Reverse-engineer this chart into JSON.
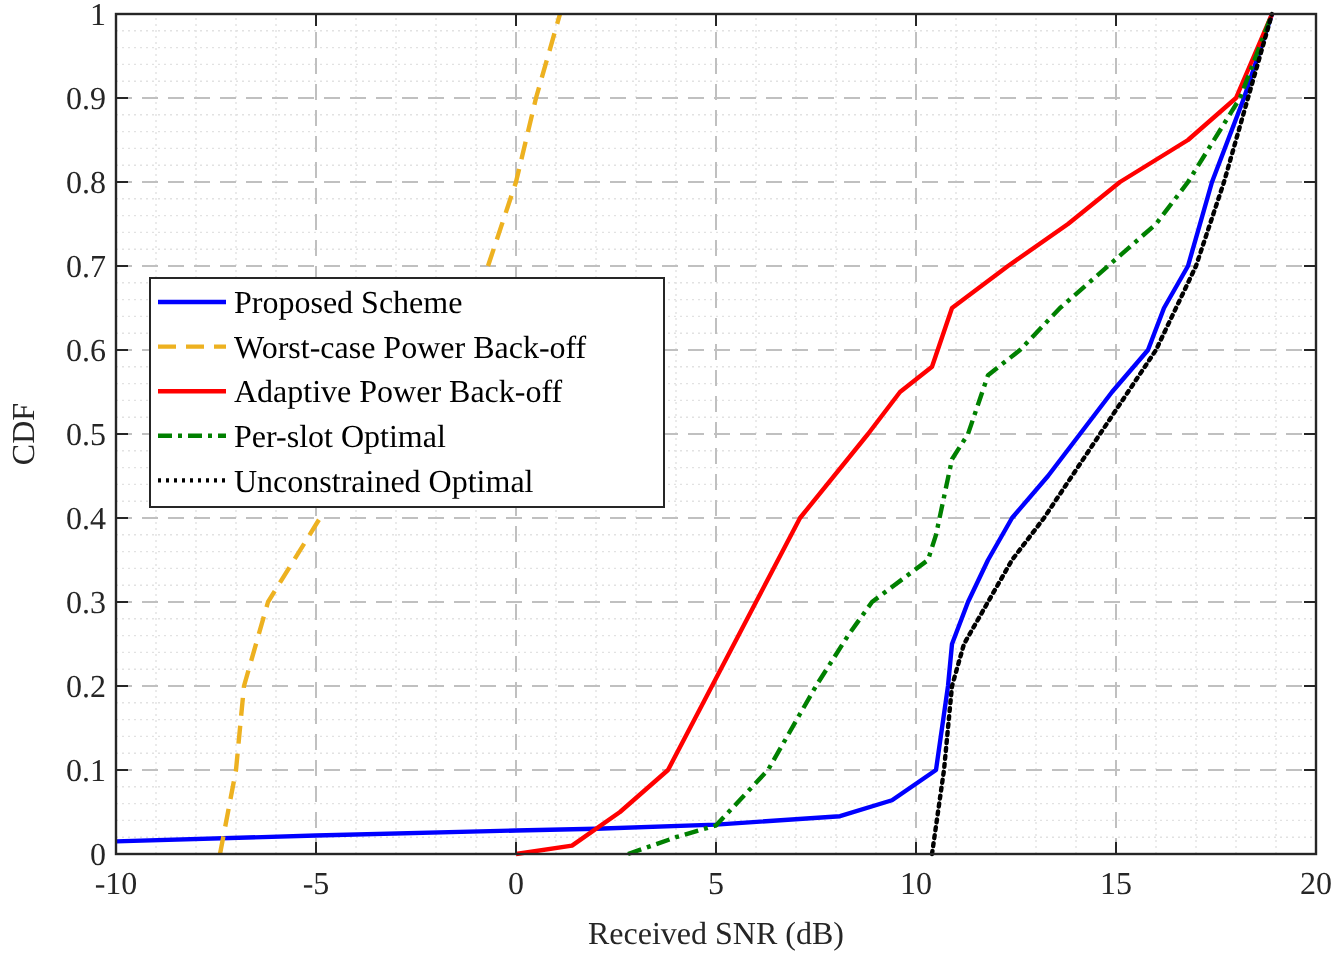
{
  "chart_data": {
    "type": "line",
    "xlabel": "Received SNR (dB)",
    "ylabel": "CDF",
    "xlim": [
      -10,
      20
    ],
    "xticks": [
      -10,
      -5,
      0,
      5,
      10,
      15,
      20
    ],
    "ylim": [
      0,
      1
    ],
    "yticks": [
      0,
      0.1,
      0.2,
      0.3,
      0.4,
      0.5,
      0.6,
      0.7,
      0.8,
      0.9,
      1
    ],
    "grid": true,
    "legend": "left",
    "series": [
      {
        "name": "Proposed Scheme",
        "color": "#0000ff",
        "line_style": "solid",
        "x": [
          -10,
          -5,
          0,
          2,
          5,
          8.1,
          9.4,
          10.5,
          10.8,
          10.9,
          11.3,
          11.8,
          12.4,
          13.3,
          14.1,
          14.9,
          15.8,
          16.2,
          16.8,
          17.4,
          18.2,
          18.9
        ],
        "values": [
          0.015,
          0.022,
          0.028,
          0.03,
          0.035,
          0.045,
          0.064,
          0.1,
          0.2,
          0.25,
          0.3,
          0.35,
          0.4,
          0.45,
          0.5,
          0.55,
          0.6,
          0.65,
          0.7,
          0.8,
          0.9,
          1
        ]
      },
      {
        "name": "Worst-case Power Back-off",
        "color": "#edb120",
        "line_style": "dashed",
        "x": [
          -7.4,
          -7.0,
          -6.8,
          -6.2,
          -4.9,
          -2.8,
          -0.7,
          0,
          0.5,
          1.1
        ],
        "values": [
          0,
          0.1,
          0.2,
          0.3,
          0.4,
          null,
          0.7,
          0.8,
          0.9,
          1
        ]
      },
      {
        "name": "Adaptive Power Back-off",
        "color": "#ff0000",
        "line_style": "solid",
        "x": [
          0,
          1.4,
          2.6,
          3.8,
          4.9,
          6.0,
          7.1,
          8.8,
          9.6,
          10.4,
          10.9,
          12.3,
          13.8,
          15.1,
          16.8,
          18.0,
          18.9
        ],
        "values": [
          0,
          0.01,
          0.05,
          0.1,
          0.2,
          0.3,
          0.4,
          0.5,
          0.55,
          0.58,
          0.65,
          0.7,
          0.75,
          0.8,
          0.85,
          0.9,
          1
        ]
      },
      {
        "name": "Per-slot Optimal",
        "color": "#008000",
        "line_style": "dashdot",
        "x": [
          2.8,
          4,
          5.0,
          6.3,
          7.5,
          8.3,
          8.9,
          10.3,
          10.5,
          10.9,
          11.3,
          11.8,
          12.6,
          13.6,
          14.8,
          16.0,
          16.8,
          18.1,
          18.9
        ],
        "values": [
          0,
          0.02,
          0.034,
          0.1,
          0.2,
          0.26,
          0.3,
          0.35,
          0.38,
          0.47,
          0.5,
          0.57,
          0.6,
          0.65,
          0.7,
          0.75,
          0.8,
          0.9,
          1
        ]
      },
      {
        "name": "Unconstrained Optimal",
        "color": "#000000",
        "line_style": "dotted",
        "x": [
          10.4,
          10.7,
          10.9,
          11.2,
          11.8,
          12.4,
          13.2,
          13.9,
          14.6,
          15.3,
          16.0,
          17.0,
          17.7,
          18.3,
          18.9
        ],
        "values": [
          0,
          0.1,
          0.2,
          0.25,
          0.3,
          0.35,
          0.4,
          0.45,
          0.5,
          0.55,
          0.6,
          0.7,
          0.8,
          0.9,
          1
        ]
      }
    ]
  }
}
